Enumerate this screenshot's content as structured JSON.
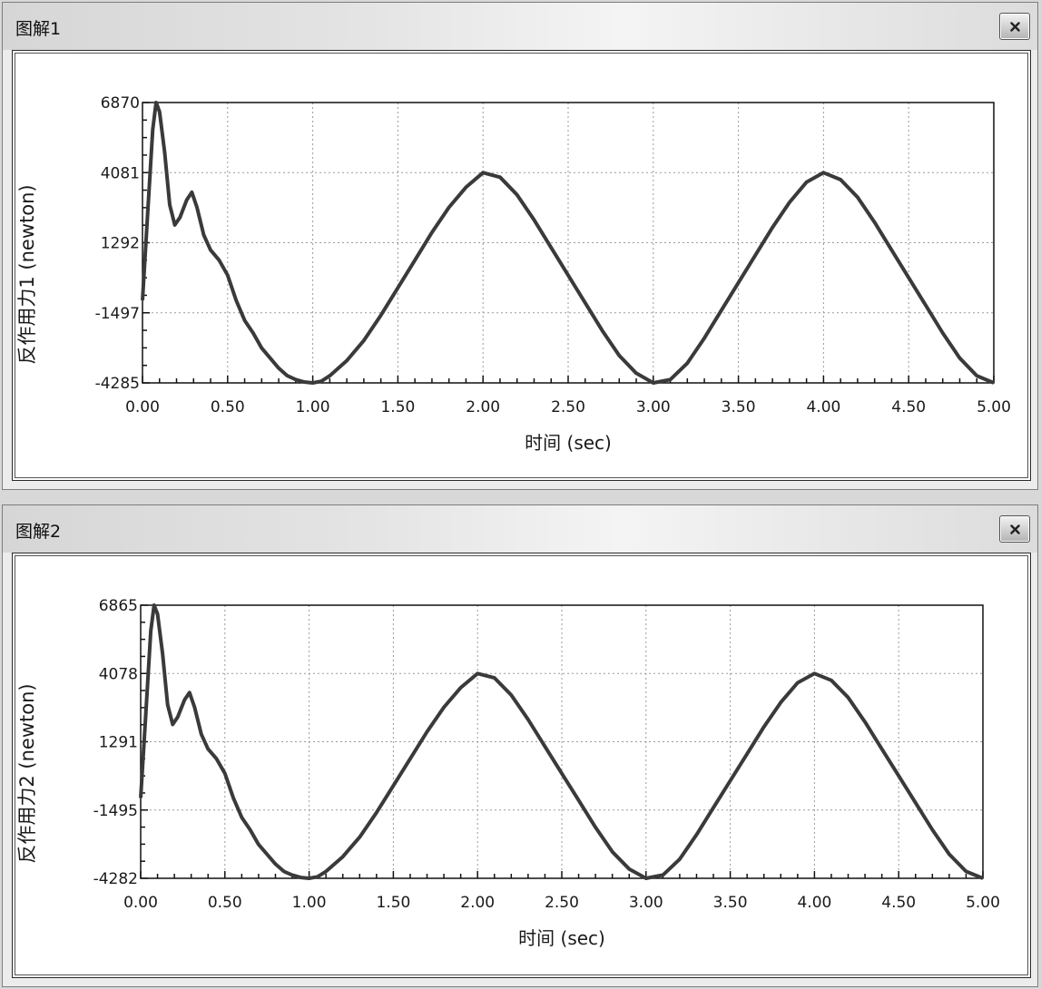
{
  "windows": [
    {
      "title": "图解1",
      "close_label": "x",
      "chart_data": {
        "type": "line",
        "xlabel": "时间 (sec)",
        "ylabel": "反作用力1 (newton)",
        "xlim": [
          0,
          5
        ],
        "ylim": [
          -4285,
          6870
        ],
        "x_ticks": [
          "0.00",
          "0.50",
          "1.00",
          "1.50",
          "2.00",
          "2.50",
          "3.00",
          "3.50",
          "4.00",
          "4.50",
          "5.00"
        ],
        "y_ticks": [
          "6870",
          "4081",
          "1292",
          "-1497",
          "-4285"
        ],
        "grid": true,
        "series": [
          {
            "color": "#3a3a3a",
            "x": [
              0.0,
              0.03,
              0.06,
              0.08,
              0.1,
              0.13,
              0.16,
              0.19,
              0.22,
              0.26,
              0.29,
              0.32,
              0.36,
              0.4,
              0.45,
              0.5,
              0.55,
              0.6,
              0.65,
              0.7,
              0.75,
              0.8,
              0.85,
              0.9,
              0.95,
              1.0,
              1.05,
              1.1,
              1.2,
              1.3,
              1.4,
              1.5,
              1.6,
              1.7,
              1.8,
              1.9,
              2.0,
              2.1,
              2.2,
              2.3,
              2.4,
              2.5,
              2.6,
              2.7,
              2.8,
              2.9,
              3.0,
              3.1,
              3.2,
              3.3,
              3.4,
              3.5,
              3.6,
              3.7,
              3.8,
              3.9,
              4.0,
              4.1,
              4.2,
              4.3,
              4.4,
              4.5,
              4.6,
              4.7,
              4.8,
              4.9,
              5.0
            ],
            "y": [
              -1000,
              2400,
              5800,
              6870,
              6500,
              4900,
              2800,
              2000,
              2300,
              3000,
              3300,
              2700,
              1600,
              1000,
              600,
              0,
              -1000,
              -1800,
              -2300,
              -2900,
              -3300,
              -3700,
              -4000,
              -4150,
              -4250,
              -4285,
              -4220,
              -4000,
              -3400,
              -2600,
              -1600,
              -500,
              600,
              1700,
              2700,
              3500,
              4081,
              3900,
              3200,
              2200,
              1100,
              0,
              -1100,
              -2200,
              -3200,
              -3900,
              -4285,
              -4150,
              -3500,
              -2500,
              -1400,
              -300,
              800,
              1900,
              2900,
              3700,
              4081,
              3800,
              3100,
              2100,
              1000,
              -100,
              -1200,
              -2300,
              -3300,
              -4000,
              -4285
            ]
          }
        ]
      }
    },
    {
      "title": "图解2",
      "close_label": "x",
      "chart_data": {
        "type": "line",
        "xlabel": "时间 (sec)",
        "ylabel": "反作用力2 (newton)",
        "xlim": [
          0,
          5
        ],
        "ylim": [
          -4282,
          6865
        ],
        "x_ticks": [
          "0.00",
          "0.50",
          "1.00",
          "1.50",
          "2.00",
          "2.50",
          "3.00",
          "3.50",
          "4.00",
          "4.50",
          "5.00"
        ],
        "y_ticks": [
          "6865",
          "4078",
          "1291",
          "-1495",
          "-4282"
        ],
        "grid": true,
        "series": [
          {
            "color": "#3a3a3a",
            "x": [
              0.0,
              0.03,
              0.06,
              0.08,
              0.1,
              0.13,
              0.16,
              0.19,
              0.22,
              0.26,
              0.29,
              0.32,
              0.36,
              0.4,
              0.45,
              0.5,
              0.55,
              0.6,
              0.65,
              0.7,
              0.75,
              0.8,
              0.85,
              0.9,
              0.95,
              1.0,
              1.05,
              1.1,
              1.2,
              1.3,
              1.4,
              1.5,
              1.6,
              1.7,
              1.8,
              1.9,
              2.0,
              2.1,
              2.2,
              2.3,
              2.4,
              2.5,
              2.6,
              2.7,
              2.8,
              2.9,
              3.0,
              3.1,
              3.2,
              3.3,
              3.4,
              3.5,
              3.6,
              3.7,
              3.8,
              3.9,
              4.0,
              4.1,
              4.2,
              4.3,
              4.4,
              4.5,
              4.6,
              4.7,
              4.8,
              4.9,
              5.0
            ],
            "y": [
              -1000,
              2400,
              5800,
              6865,
              6500,
              4900,
              2800,
              2000,
              2300,
              3000,
              3300,
              2700,
              1600,
              1000,
              600,
              0,
              -1000,
              -1800,
              -2300,
              -2900,
              -3300,
              -3700,
              -4000,
              -4150,
              -4250,
              -4282,
              -4220,
              -4000,
              -3400,
              -2600,
              -1600,
              -500,
              600,
              1700,
              2700,
              3500,
              4078,
              3900,
              3200,
              2200,
              1100,
              0,
              -1100,
              -2200,
              -3200,
              -3900,
              -4282,
              -4150,
              -3500,
              -2500,
              -1400,
              -300,
              800,
              1900,
              2900,
              3700,
              4078,
              3800,
              3100,
              2100,
              1000,
              -100,
              -1200,
              -2300,
              -3300,
              -4000,
              -4282
            ]
          }
        ]
      }
    }
  ]
}
